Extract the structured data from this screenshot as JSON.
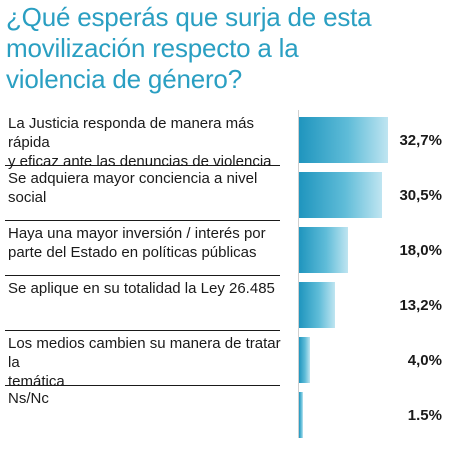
{
  "title": "¿Qué esperás que surja de esta\nmovilización respecto a la\nviolencia de género?",
  "chart_data": {
    "type": "bar",
    "orientation": "horizontal",
    "title": "¿Qué esperás que surja de esta movilización respecto a la violencia de género?",
    "categories": [
      "La Justicia responda de manera más rápida\ny eficaz ante las denuncias de violencia",
      "Se adquiera mayor conciencia a nivel social",
      "Haya una mayor inversión / interés por\nparte del Estado en políticas públicas",
      "Se aplique en su totalidad la Ley 26.485",
      "Los medios cambien su manera de tratar la\ntemática",
      "Ns/Nc"
    ],
    "values": [
      32.7,
      30.5,
      18.0,
      13.2,
      4.0,
      1.5
    ],
    "value_labels": [
      "32,7%",
      "30,5%",
      "18,0%",
      "13,2%",
      "4,0%",
      "1.5%"
    ],
    "xlim": [
      0,
      35
    ],
    "grid": false,
    "legend": "none"
  }
}
